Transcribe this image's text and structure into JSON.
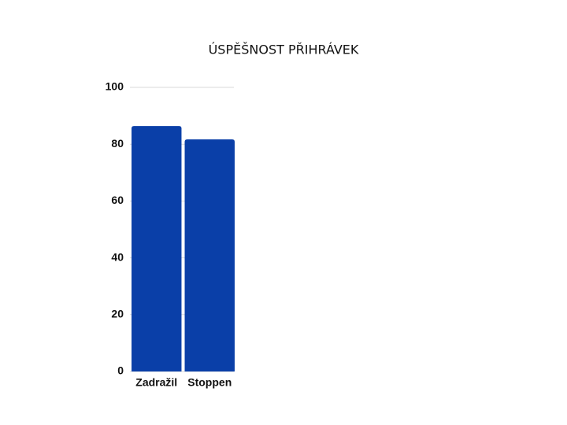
{
  "chart_data": {
    "type": "bar",
    "title": "ÚSPĚŠNOST PŘIHRÁVEK",
    "categories": [
      "Zadražil",
      "Stoppen"
    ],
    "values": [
      86.4,
      81.7
    ],
    "color": "#0a3fa8",
    "ylim": [
      0,
      100
    ],
    "yticks": [
      0,
      20,
      40,
      60,
      80,
      100
    ],
    "grid": true
  }
}
